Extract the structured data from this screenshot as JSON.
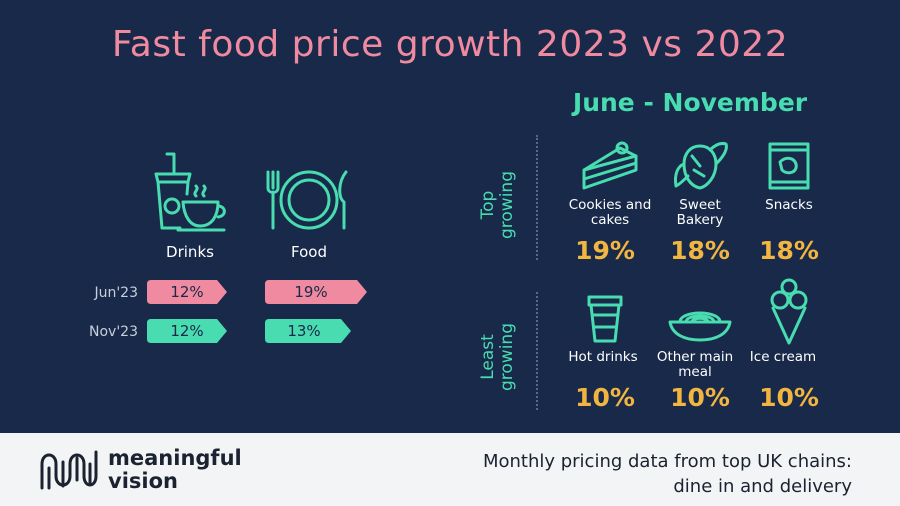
{
  "title": "Fast food price growth 2023 vs 2022",
  "subtitle": "June - November",
  "colors": {
    "background": "#18294a",
    "pink": "#f08aa0",
    "teal": "#48dcb0",
    "gold": "#f2b640",
    "footer": "#f3f4f6"
  },
  "chart_data": [
    {
      "type": "table",
      "title": "Drinks vs Food price growth",
      "categories": [
        "Drinks",
        "Food"
      ],
      "series": [
        {
          "name": "Jun'23",
          "values": [
            12,
            19
          ],
          "labels": [
            "12%",
            "19%"
          ]
        },
        {
          "name": "Nov'23",
          "values": [
            12,
            13
          ],
          "labels": [
            "12%",
            "13%"
          ]
        }
      ],
      "unit": "%"
    },
    {
      "type": "table",
      "title": "June - November",
      "groups": [
        {
          "name": "Top growing",
          "categories": [
            "Cookies and cakes",
            "Sweet Bakery",
            "Snacks"
          ],
          "values": [
            19,
            18,
            18
          ],
          "labels": [
            "19%",
            "18%",
            "18%"
          ]
        },
        {
          "name": "Least growing",
          "categories": [
            "Hot drinks",
            "Other main meal",
            "Ice cream"
          ],
          "values": [
            10,
            10,
            10
          ],
          "labels": [
            "10%",
            "10%",
            "10%"
          ]
        }
      ],
      "unit": "%"
    }
  ],
  "left": {
    "drinks_label": "Drinks",
    "food_label": "Food",
    "rows": [
      {
        "label": "Jun'23",
        "drinks": "12%",
        "food": "19%"
      },
      {
        "label": "Nov'23",
        "drinks": "12%",
        "food": "13%"
      }
    ]
  },
  "right": {
    "top_label_line1": "Top",
    "top_label_line2": "growing",
    "least_label_line1": "Least",
    "least_label_line2": "growing",
    "top": [
      {
        "name_line1": "Cookies and",
        "name_line2": "cakes",
        "value": "19%",
        "icon": "cake-slice-icon"
      },
      {
        "name_line1": "Sweet",
        "name_line2": "Bakery",
        "value": "18%",
        "icon": "croissant-icon"
      },
      {
        "name_line1": "Snacks",
        "name_line2": "",
        "value": "18%",
        "icon": "snack-bag-icon"
      }
    ],
    "least": [
      {
        "name_line1": "Hot drinks",
        "name_line2": "",
        "value": "10%",
        "icon": "coffee-cup-icon"
      },
      {
        "name_line1": "Other main",
        "name_line2": "meal",
        "value": "10%",
        "icon": "noodle-bowl-icon"
      },
      {
        "name_line1": "Ice cream",
        "name_line2": "",
        "value": "10%",
        "icon": "ice-cream-icon"
      }
    ]
  },
  "footer": {
    "brand_line1": "meaningful",
    "brand_line2": "vision",
    "source_line1": "Monthly pricing data from top UK chains:",
    "source_line2": "dine in and delivery"
  }
}
